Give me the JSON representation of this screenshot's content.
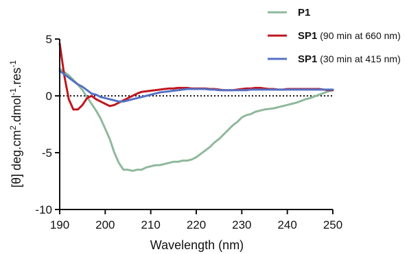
{
  "chart_data": {
    "type": "line",
    "xlabel": "Wavelength (nm)",
    "ylabel": {
      "prefix": "[θ] deg.cm",
      "sup1": "2",
      "middle": ".dmol",
      "sup2": "-1",
      "suffix": ".res",
      "sup3": "-1"
    },
    "xlim": [
      190,
      250
    ],
    "ylim": [
      -10,
      5
    ],
    "xticks": [
      "190",
      "200",
      "210",
      "220",
      "230",
      "240",
      "250"
    ],
    "yticks": [
      "5",
      "0",
      "-5",
      "-10"
    ],
    "zero_line": "dotted",
    "grid": false,
    "legend_position": "top-right",
    "series": [
      {
        "label_bold": "P1",
        "label_rest": "",
        "color": "#8fb89b",
        "x": [
          190,
          191,
          192,
          193,
          194,
          195,
          196,
          197,
          198,
          199,
          200,
          201,
          202,
          203,
          204,
          205,
          206,
          207,
          208,
          209,
          210,
          211,
          212,
          213,
          214,
          215,
          216,
          217,
          218,
          219,
          220,
          221,
          222,
          223,
          224,
          225,
          226,
          227,
          228,
          229,
          230,
          231,
          232,
          233,
          234,
          235,
          236,
          237,
          238,
          239,
          240,
          241,
          242,
          243,
          244,
          245,
          246,
          247,
          248,
          249,
          250
        ],
        "y": [
          2.4,
          2.1,
          1.8,
          1.4,
          1.0,
          0.5,
          -0.1,
          -0.7,
          -1.3,
          -2.0,
          -2.9,
          -3.8,
          -5.0,
          -5.9,
          -6.5,
          -6.5,
          -6.6,
          -6.5,
          -6.5,
          -6.3,
          -6.2,
          -6.1,
          -6.1,
          -6.0,
          -5.9,
          -5.8,
          -5.8,
          -5.7,
          -5.7,
          -5.6,
          -5.4,
          -5.1,
          -4.8,
          -4.5,
          -4.1,
          -3.8,
          -3.4,
          -3.0,
          -2.6,
          -2.3,
          -1.9,
          -1.7,
          -1.6,
          -1.4,
          -1.3,
          -1.2,
          -1.15,
          -1.1,
          -1.0,
          -0.9,
          -0.8,
          -0.7,
          -0.6,
          -0.45,
          -0.3,
          -0.2,
          -0.05,
          0.1,
          0.25,
          0.4,
          0.5
        ]
      },
      {
        "label_bold": "SP1",
        "label_rest": " (90 min at 660 nm)",
        "color": "#c0161d",
        "x": [
          190,
          191,
          192,
          193,
          194,
          195,
          196,
          197,
          198,
          199,
          200,
          201,
          202,
          203,
          204,
          205,
          206,
          207,
          208,
          209,
          210,
          211,
          212,
          213,
          214,
          215,
          216,
          217,
          218,
          219,
          220,
          221,
          222,
          223,
          224,
          225,
          226,
          227,
          228,
          229,
          230,
          231,
          232,
          233,
          234,
          235,
          236,
          237,
          238,
          239,
          240,
          241,
          242,
          243,
          244,
          245,
          246,
          247,
          248,
          249,
          250
        ],
        "y": [
          4.6,
          1.8,
          -0.3,
          -1.2,
          -1.2,
          -0.8,
          -0.2,
          0.0,
          -0.3,
          -0.5,
          -0.7,
          -0.9,
          -0.8,
          -0.6,
          -0.4,
          -0.2,
          0.0,
          0.2,
          0.35,
          0.4,
          0.45,
          0.5,
          0.55,
          0.6,
          0.65,
          0.65,
          0.7,
          0.7,
          0.7,
          0.65,
          0.65,
          0.65,
          0.65,
          0.6,
          0.6,
          0.55,
          0.5,
          0.5,
          0.5,
          0.55,
          0.6,
          0.65,
          0.65,
          0.7,
          0.7,
          0.65,
          0.6,
          0.6,
          0.55,
          0.55,
          0.6,
          0.6,
          0.6,
          0.6,
          0.6,
          0.6,
          0.6,
          0.6,
          0.55,
          0.5,
          0.5
        ]
      },
      {
        "label_bold": "SP1",
        "label_rest": " (30 min at 415 nm)",
        "color": "#5470c6",
        "x": [
          190,
          191,
          192,
          193,
          194,
          195,
          196,
          197,
          198,
          199,
          200,
          201,
          202,
          203,
          204,
          205,
          206,
          207,
          208,
          209,
          210,
          211,
          212,
          213,
          214,
          215,
          216,
          217,
          218,
          219,
          220,
          221,
          222,
          223,
          224,
          225,
          226,
          227,
          228,
          229,
          230,
          231,
          232,
          233,
          234,
          235,
          236,
          237,
          238,
          239,
          240,
          241,
          242,
          243,
          244,
          245,
          246,
          247,
          248,
          249,
          250
        ],
        "y": [
          2.2,
          1.9,
          1.6,
          1.3,
          1.0,
          0.8,
          0.5,
          0.2,
          0.1,
          -0.1,
          -0.2,
          -0.3,
          -0.4,
          -0.5,
          -0.5,
          -0.4,
          -0.3,
          -0.2,
          -0.1,
          0.0,
          0.1,
          0.2,
          0.3,
          0.35,
          0.4,
          0.45,
          0.5,
          0.55,
          0.6,
          0.6,
          0.6,
          0.6,
          0.6,
          0.55,
          0.55,
          0.5,
          0.5,
          0.5,
          0.5,
          0.5,
          0.5,
          0.5,
          0.55,
          0.55,
          0.55,
          0.55,
          0.55,
          0.55,
          0.55,
          0.55,
          0.55,
          0.55,
          0.55,
          0.55,
          0.55,
          0.55,
          0.55,
          0.55,
          0.55,
          0.55,
          0.55
        ]
      }
    ]
  }
}
